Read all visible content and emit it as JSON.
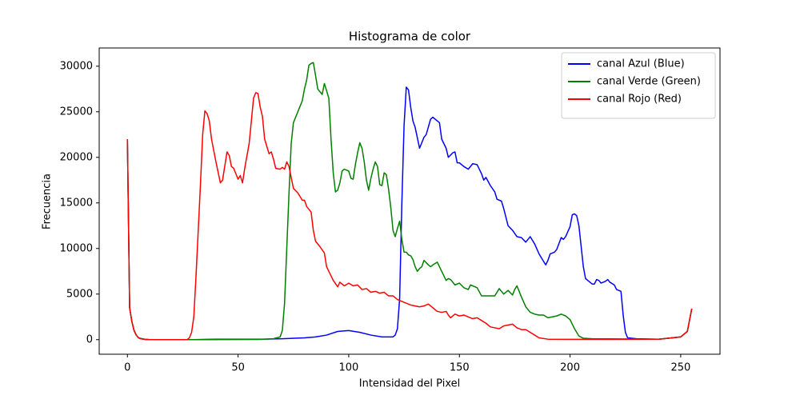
{
  "chart_data": {
    "type": "line",
    "title": "Histograma de color",
    "x_label": "Intensidad del Pixel",
    "y_label": "Frecuencia",
    "xlim": [
      -12.75,
      267.75
    ],
    "ylim": [
      -1600,
      32000
    ],
    "xticks": [
      0,
      50,
      100,
      150,
      200,
      250
    ],
    "yticks": [
      0,
      5000,
      10000,
      15000,
      20000,
      25000,
      30000
    ],
    "legend": "upper right",
    "series": [
      {
        "name": "canal Azul (Blue)",
        "color": "#0000ff",
        "x": [
          0,
          1,
          2,
          3,
          4,
          5,
          6,
          8,
          10,
          20,
          30,
          40,
          60,
          70,
          80,
          85,
          90,
          95,
          100,
          105,
          110,
          115,
          120,
          121,
          122,
          123,
          124,
          125,
          126,
          127,
          128,
          129,
          130,
          132,
          134,
          135,
          137,
          138,
          140,
          141,
          142,
          144,
          145,
          147,
          148,
          149,
          150,
          152,
          154,
          156,
          158,
          160,
          161,
          162,
          164,
          166,
          167,
          169,
          170,
          172,
          174,
          176,
          178,
          180,
          182,
          184,
          186,
          188,
          189,
          190,
          191,
          193,
          194,
          196,
          197,
          198,
          200,
          201,
          202,
          203,
          204,
          206,
          207,
          208,
          210,
          211,
          212,
          213,
          214,
          216,
          217,
          218,
          220,
          221,
          222,
          223,
          224,
          225,
          226,
          230,
          240,
          250,
          253,
          255
        ],
        "values": [
          21800,
          3500,
          2000,
          1000,
          500,
          200,
          100,
          30,
          0,
          0,
          0,
          50,
          50,
          100,
          200,
          300,
          500,
          900,
          1000,
          800,
          500,
          300,
          300,
          500,
          1200,
          4500,
          15000,
          23500,
          27700,
          27400,
          25500,
          24000,
          23300,
          21000,
          22200,
          22500,
          24200,
          24400,
          24000,
          23800,
          22000,
          21000,
          20000,
          20500,
          20600,
          19400,
          19400,
          19000,
          18700,
          19300,
          19200,
          18200,
          17500,
          17800,
          16900,
          16200,
          15400,
          15200,
          14400,
          12500,
          12000,
          11300,
          11200,
          10700,
          11300,
          10500,
          9400,
          8600,
          8200,
          8700,
          9400,
          9600,
          9900,
          11200,
          11000,
          11300,
          12400,
          13700,
          13800,
          13600,
          12500,
          8000,
          6700,
          6500,
          6100,
          6100,
          6600,
          6500,
          6200,
          6400,
          6600,
          6300,
          6000,
          5500,
          5400,
          5300,
          2700,
          800,
          200,
          100,
          50,
          300,
          900,
          3400
        ]
      },
      {
        "name": "canal Verde (Green)",
        "color": "#008000",
        "x": [
          0,
          1,
          2,
          3,
          4,
          5,
          8,
          10,
          30,
          60,
          66,
          69,
          70,
          71,
          72,
          73,
          74,
          75,
          77,
          79,
          80,
          81,
          82,
          83,
          84,
          85,
          86,
          88,
          89,
          90,
          91,
          92,
          93,
          94,
          95,
          96,
          97,
          98,
          100,
          101,
          102,
          103,
          104,
          105,
          106,
          107,
          108,
          109,
          110,
          111,
          112,
          113,
          114,
          115,
          116,
          117,
          118,
          119,
          120,
          121,
          122,
          123,
          124,
          125,
          126,
          127,
          128,
          129,
          130,
          131,
          132,
          133,
          134,
          136,
          137,
          138,
          140,
          142,
          144,
          145,
          146,
          148,
          150,
          152,
          154,
          155,
          158,
          160,
          162,
          166,
          168,
          170,
          172,
          174,
          175,
          176,
          178,
          180,
          182,
          184,
          186,
          188,
          190,
          192,
          194,
          196,
          198,
          200,
          202,
          204,
          206,
          210,
          240,
          250,
          253,
          255
        ],
        "values": [
          22000,
          3500,
          2000,
          1000,
          500,
          200,
          20,
          0,
          0,
          20,
          100,
          300,
          1000,
          4000,
          10000,
          16000,
          21500,
          23800,
          25000,
          26200,
          27500,
          28500,
          30100,
          30300,
          30400,
          29000,
          27500,
          26900,
          28100,
          27300,
          26500,
          22000,
          18300,
          16200,
          16400,
          17200,
          18500,
          18700,
          18500,
          17700,
          17600,
          19200,
          20500,
          21600,
          21000,
          19500,
          17500,
          16400,
          17700,
          18700,
          19500,
          19000,
          17000,
          16900,
          18300,
          18100,
          16500,
          14500,
          12000,
          11300,
          12200,
          13000,
          11000,
          9600,
          9600,
          9300,
          9200,
          8800,
          8000,
          7500,
          7800,
          8000,
          8700,
          8200,
          8000,
          8200,
          8500,
          7500,
          6500,
          6700,
          6600,
          6000,
          6200,
          5700,
          5500,
          6000,
          5700,
          4800,
          4800,
          4800,
          5600,
          5000,
          5400,
          4900,
          5500,
          5900,
          4700,
          3600,
          3000,
          2800,
          2700,
          2700,
          2400,
          2500,
          2600,
          2800,
          2600,
          2200,
          1200,
          400,
          150,
          100,
          50,
          300,
          900,
          3400
        ]
      },
      {
        "name": "canal Rojo (Red)",
        "color": "#ff0000",
        "x": [
          0,
          1,
          2,
          3,
          4,
          5,
          6,
          8,
          10,
          20,
          27,
          28,
          29,
          30,
          31,
          32,
          33,
          34,
          35,
          36,
          37,
          38,
          40,
          42,
          43,
          45,
          46,
          47,
          48,
          50,
          51,
          52,
          53,
          55,
          57,
          58,
          59,
          60,
          61,
          62,
          64,
          65,
          66,
          67,
          69,
          70,
          71,
          72,
          73,
          75,
          77,
          79,
          80,
          81,
          83,
          84,
          85,
          87,
          89,
          90,
          91,
          93,
          95,
          96,
          98,
          100,
          102,
          104,
          106,
          108,
          110,
          112,
          114,
          116,
          118,
          120,
          122,
          124,
          126,
          128,
          130,
          132,
          134,
          136,
          138,
          140,
          142,
          144,
          145,
          146,
          148,
          150,
          152,
          154,
          156,
          158,
          160,
          162,
          164,
          166,
          168,
          170,
          172,
          174,
          176,
          178,
          180,
          182,
          184,
          186,
          190,
          200,
          240,
          250,
          253,
          255
        ],
        "values": [
          22000,
          3500,
          2000,
          1000,
          500,
          200,
          100,
          30,
          0,
          0,
          0,
          200,
          800,
          2500,
          7000,
          12000,
          17000,
          22500,
          25100,
          24800,
          24000,
          22000,
          19500,
          17200,
          17500,
          20600,
          20200,
          19000,
          18800,
          17600,
          18000,
          17200,
          18800,
          21500,
          26500,
          27100,
          27000,
          25500,
          24500,
          22000,
          20400,
          20600,
          19800,
          18800,
          18700,
          18900,
          18700,
          19500,
          19000,
          16600,
          16100,
          15300,
          15300,
          14600,
          14000,
          12000,
          10800,
          10200,
          9500,
          8000,
          7500,
          6500,
          5800,
          6300,
          5900,
          6200,
          5900,
          6000,
          5500,
          5600,
          5200,
          5300,
          5100,
          5200,
          4800,
          4800,
          4400,
          4200,
          4000,
          3800,
          3700,
          3600,
          3700,
          3900,
          3500,
          3100,
          3000,
          3100,
          2700,
          2400,
          2800,
          2600,
          2700,
          2500,
          2300,
          2400,
          2100,
          1800,
          1400,
          1300,
          1200,
          1500,
          1600,
          1700,
          1300,
          1100,
          1100,
          800,
          500,
          200,
          50,
          30,
          50,
          300,
          900,
          3400
        ]
      }
    ]
  }
}
